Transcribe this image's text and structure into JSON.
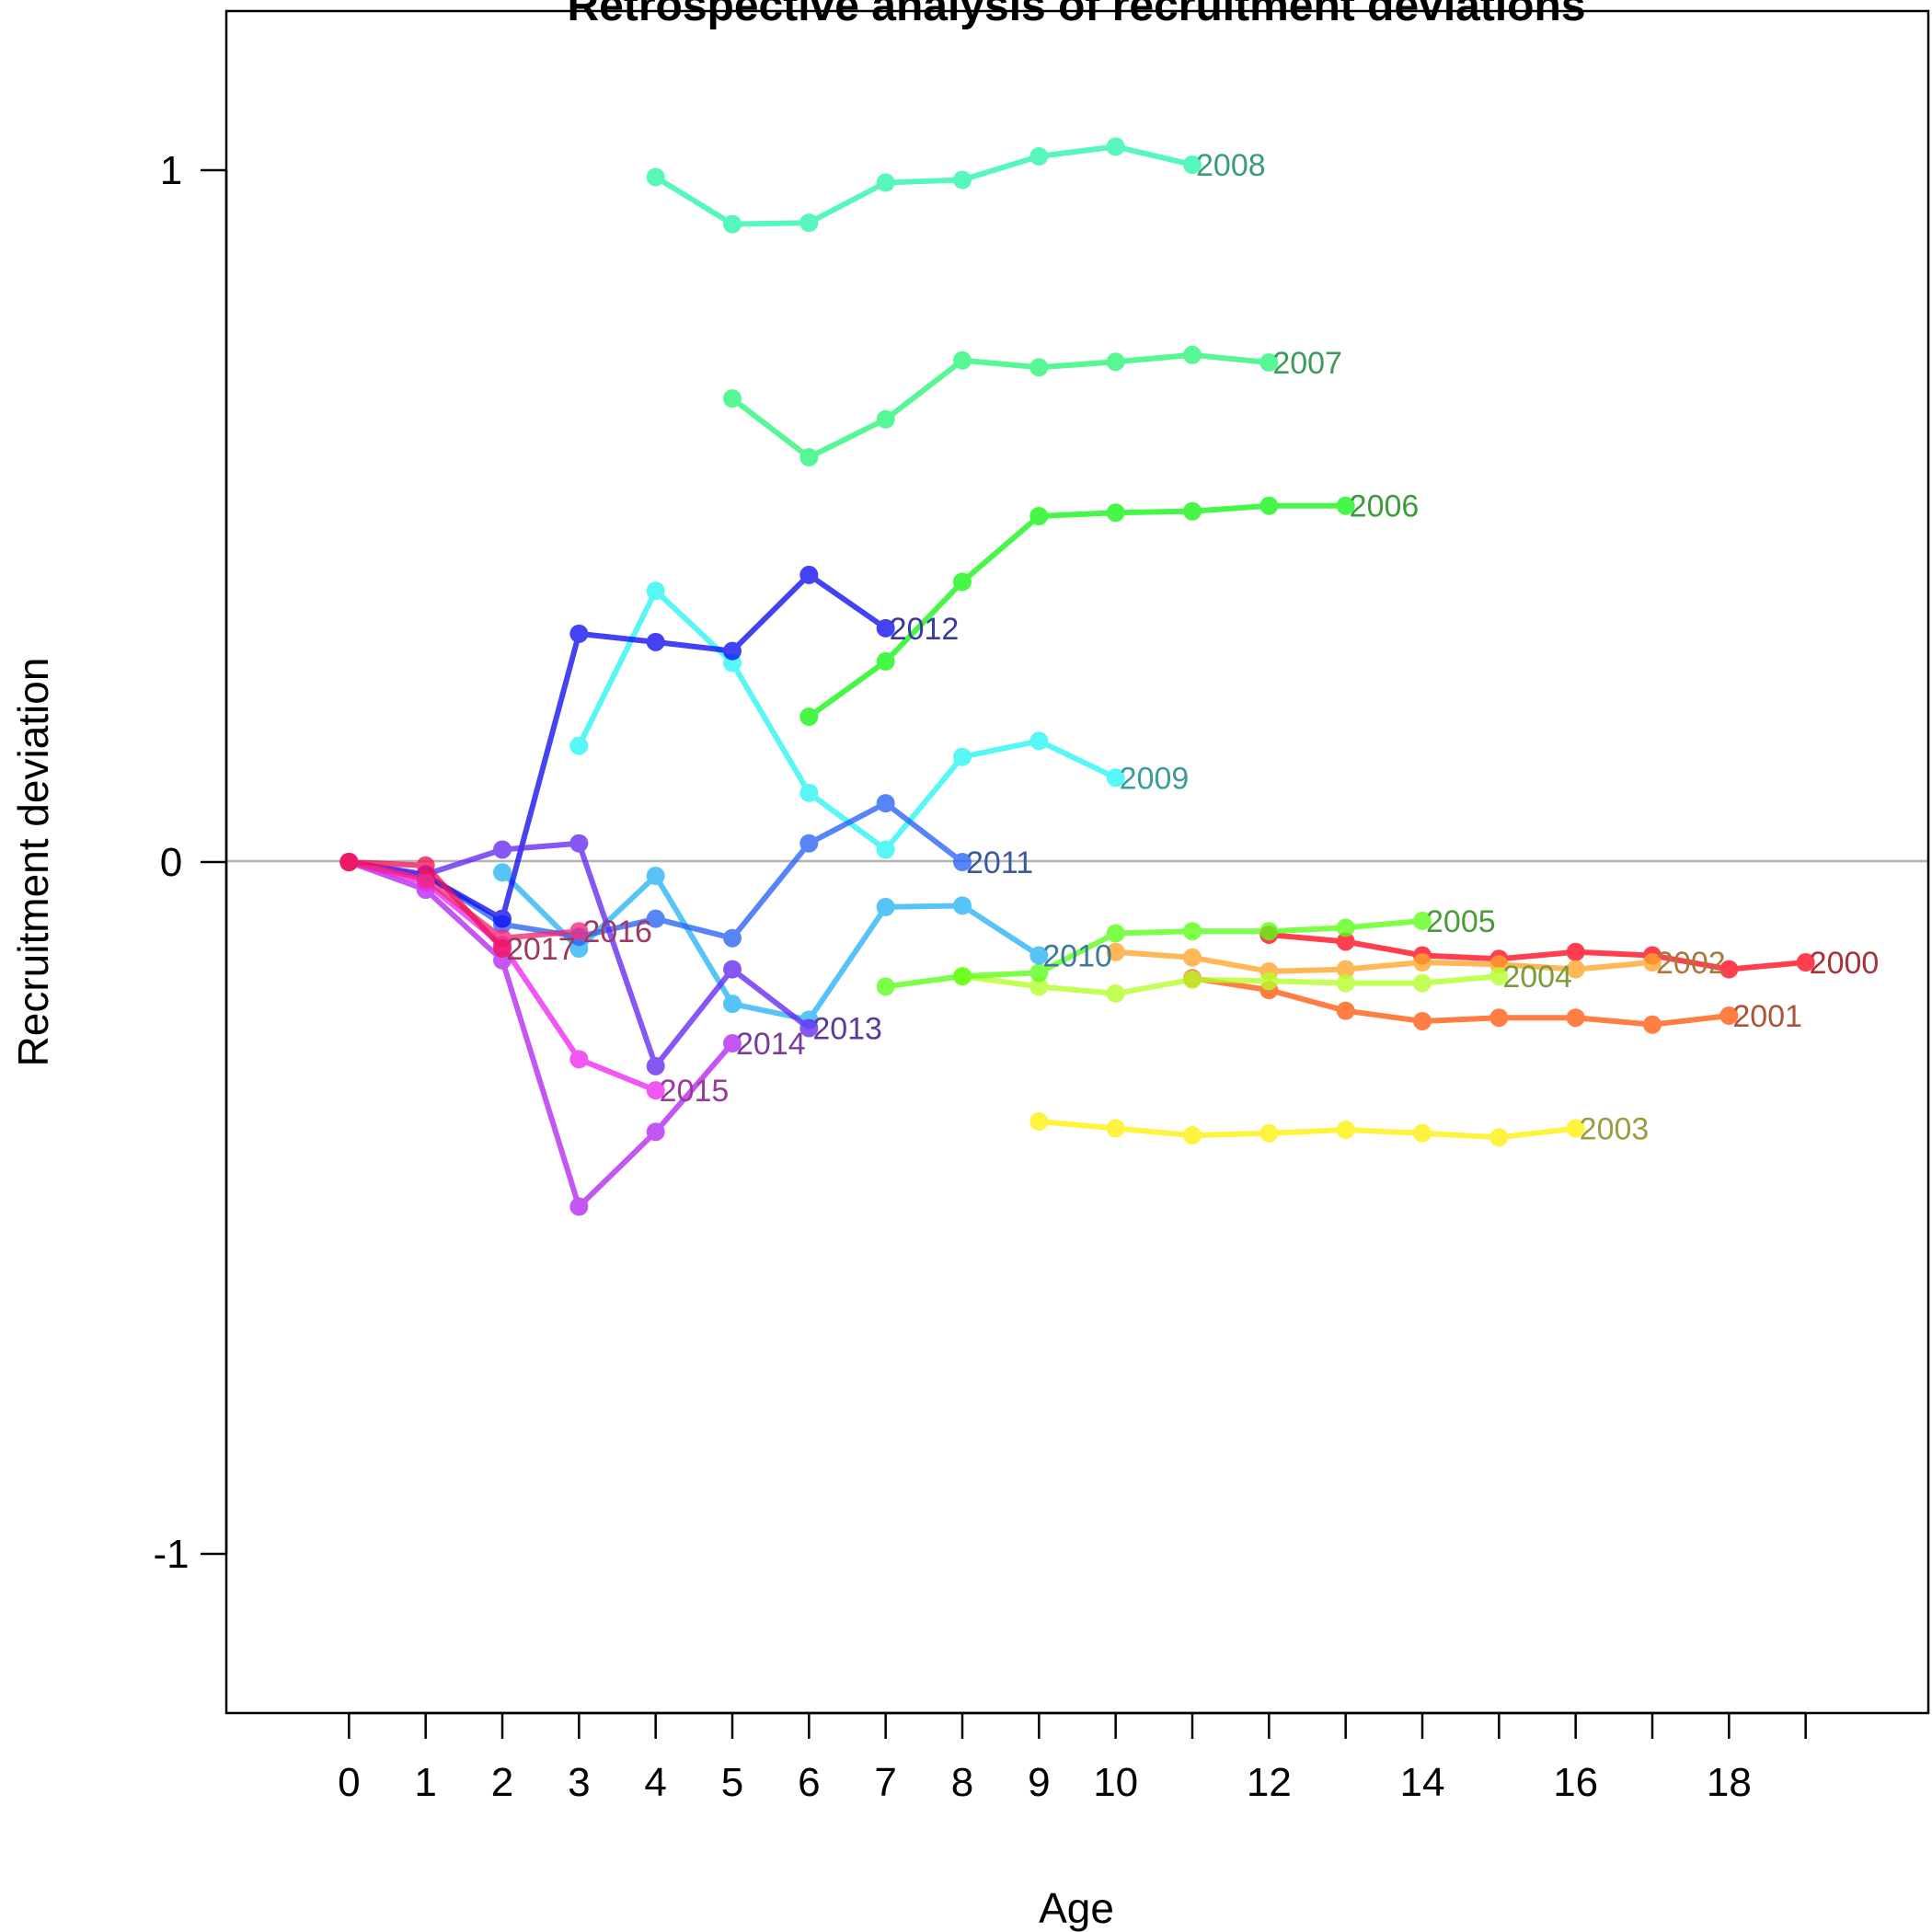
{
  "chart_data": {
    "type": "line",
    "title": "Retrospective analysis of recruitment deviations",
    "xlabel": "Age",
    "ylabel": "Recruitment deviation",
    "xlim": [
      -1.6,
      20.6
    ],
    "ylim": [
      -1.23,
      1.23
    ],
    "x_ticks": [
      0,
      1,
      2,
      3,
      4,
      5,
      6,
      7,
      8,
      9,
      10,
      11,
      12,
      13,
      14,
      15,
      16,
      17,
      18,
      19
    ],
    "x_tick_labels": [
      "0",
      "1",
      "2",
      "3",
      "4",
      "5",
      "6",
      "7",
      "8",
      "9",
      "10",
      "",
      "12",
      "",
      "14",
      "",
      "16",
      "",
      "18",
      ""
    ],
    "y_ticks": [
      -1,
      0,
      1
    ],
    "y_tick_labels": [
      "-1",
      "0",
      "1"
    ],
    "reference_line": 0,
    "series": [
      {
        "name": "2000",
        "color": "#ff0a1f",
        "label_color": "#a8323a",
        "x": [
          12,
          13,
          14,
          15,
          16,
          17,
          18,
          19
        ],
        "y": [
          -0.105,
          -0.115,
          -0.135,
          -0.14,
          -0.13,
          -0.135,
          -0.155,
          -0.145
        ]
      },
      {
        "name": "2001",
        "color": "#ff5a10",
        "label_color": "#a8553a",
        "x": [
          11,
          12,
          13,
          14,
          15,
          16,
          17,
          18
        ],
        "y": [
          -0.168,
          -0.185,
          -0.215,
          -0.23,
          -0.225,
          -0.225,
          -0.235,
          -0.222
        ]
      },
      {
        "name": "2002",
        "color": "#ffa528",
        "label_color": "#a87a3a",
        "x": [
          10,
          11,
          12,
          13,
          14,
          15,
          16,
          17
        ],
        "y": [
          -0.13,
          -0.138,
          -0.158,
          -0.155,
          -0.145,
          -0.148,
          -0.155,
          -0.145
        ]
      },
      {
        "name": "2003",
        "color": "#fff00a",
        "label_color": "#9c9c42",
        "x": [
          9,
          10,
          11,
          12,
          13,
          14,
          15,
          16
        ],
        "y": [
          -0.375,
          -0.385,
          -0.395,
          -0.392,
          -0.387,
          -0.392,
          -0.398,
          -0.385
        ]
      },
      {
        "name": "2004",
        "color": "#b4ff28",
        "label_color": "#7a9c3a",
        "x": [
          8,
          9,
          10,
          11,
          12,
          13,
          14,
          15
        ],
        "y": [
          -0.165,
          -0.18,
          -0.19,
          -0.17,
          -0.172,
          -0.175,
          -0.175,
          -0.165
        ]
      },
      {
        "name": "2005",
        "color": "#5aff14",
        "label_color": "#4a9c3a",
        "x": [
          7,
          8,
          9,
          10,
          11,
          12,
          13,
          14
        ],
        "y": [
          -0.18,
          -0.165,
          -0.16,
          -0.103,
          -0.1,
          -0.1,
          -0.095,
          -0.085
        ]
      },
      {
        "name": "2006",
        "color": "#14f514",
        "label_color": "#3a9c3a",
        "x": [
          6,
          7,
          8,
          9,
          10,
          11,
          12,
          13
        ],
        "y": [
          0.21,
          0.29,
          0.405,
          0.5,
          0.505,
          0.507,
          0.515,
          0.515
        ]
      },
      {
        "name": "2007",
        "color": "#28f578",
        "label_color": "#3a9c5a",
        "x": [
          5,
          6,
          7,
          8,
          9,
          10,
          11,
          12
        ],
        "y": [
          0.67,
          0.585,
          0.64,
          0.725,
          0.715,
          0.723,
          0.733,
          0.722
        ]
      },
      {
        "name": "2008",
        "color": "#28f5aa",
        "label_color": "#3a9c7a",
        "x": [
          4,
          5,
          6,
          7,
          8,
          9,
          10,
          11
        ],
        "y": [
          0.99,
          0.922,
          0.924,
          0.982,
          0.986,
          1.02,
          1.034,
          1.008
        ]
      },
      {
        "name": "2009",
        "color": "#28f5f5",
        "label_color": "#3a9c9c",
        "x": [
          3,
          4,
          5,
          6,
          7,
          8,
          9,
          10
        ],
        "y": [
          0.168,
          0.392,
          0.288,
          0.1,
          0.018,
          0.152,
          0.175,
          0.122
        ]
      },
      {
        "name": "2010",
        "color": "#28b4f5",
        "label_color": "#3a7a9c",
        "x": [
          2,
          3,
          4,
          5,
          6,
          7,
          8,
          9
        ],
        "y": [
          -0.015,
          -0.125,
          -0.02,
          -0.205,
          -0.228,
          -0.065,
          -0.063,
          -0.135
        ]
      },
      {
        "name": "2011",
        "color": "#2864f5",
        "label_color": "#3a5a9c",
        "x": [
          1,
          2,
          3,
          4,
          5,
          6,
          7,
          8
        ],
        "y": [
          -0.018,
          -0.09,
          -0.108,
          -0.082,
          -0.11,
          0.027,
          0.085,
          0.0
        ]
      },
      {
        "name": "2012",
        "color": "#0f0ff0",
        "label_color": "#3a3a9c",
        "x": [
          0,
          1,
          2,
          3,
          4,
          5,
          6,
          7
        ],
        "y": [
          0.0,
          -0.02,
          -0.082,
          0.33,
          0.318,
          0.305,
          0.415,
          0.338
        ]
      },
      {
        "name": "2013",
        "color": "#6428f0",
        "label_color": "#5a3a9c",
        "x": [
          0,
          1,
          2,
          3,
          4,
          5,
          6
        ],
        "y": [
          0.0,
          -0.018,
          0.018,
          0.027,
          -0.295,
          -0.155,
          -0.24
        ]
      },
      {
        "name": "2014",
        "color": "#b428f0",
        "label_color": "#7a3a9c",
        "x": [
          0,
          1,
          2,
          3,
          4,
          5
        ],
        "y": [
          0.0,
          -0.04,
          -0.142,
          -0.498,
          -0.39,
          -0.262
        ]
      },
      {
        "name": "2015",
        "color": "#f028f0",
        "label_color": "#9c3a9c",
        "x": [
          0,
          1,
          2,
          3,
          4
        ],
        "y": [
          0.0,
          -0.03,
          -0.12,
          -0.285,
          -0.33
        ]
      },
      {
        "name": "2016",
        "color": "#f0287a",
        "label_color": "#9c3a6a",
        "x": [
          0,
          1,
          2,
          3
        ],
        "y": [
          0.0,
          -0.025,
          -0.11,
          -0.1
        ]
      },
      {
        "name": "2017",
        "color": "#f0145a",
        "label_color": "#9c3a5a",
        "x": [
          0,
          1,
          2
        ],
        "y": [
          0.0,
          -0.005,
          -0.125
        ]
      }
    ]
  }
}
